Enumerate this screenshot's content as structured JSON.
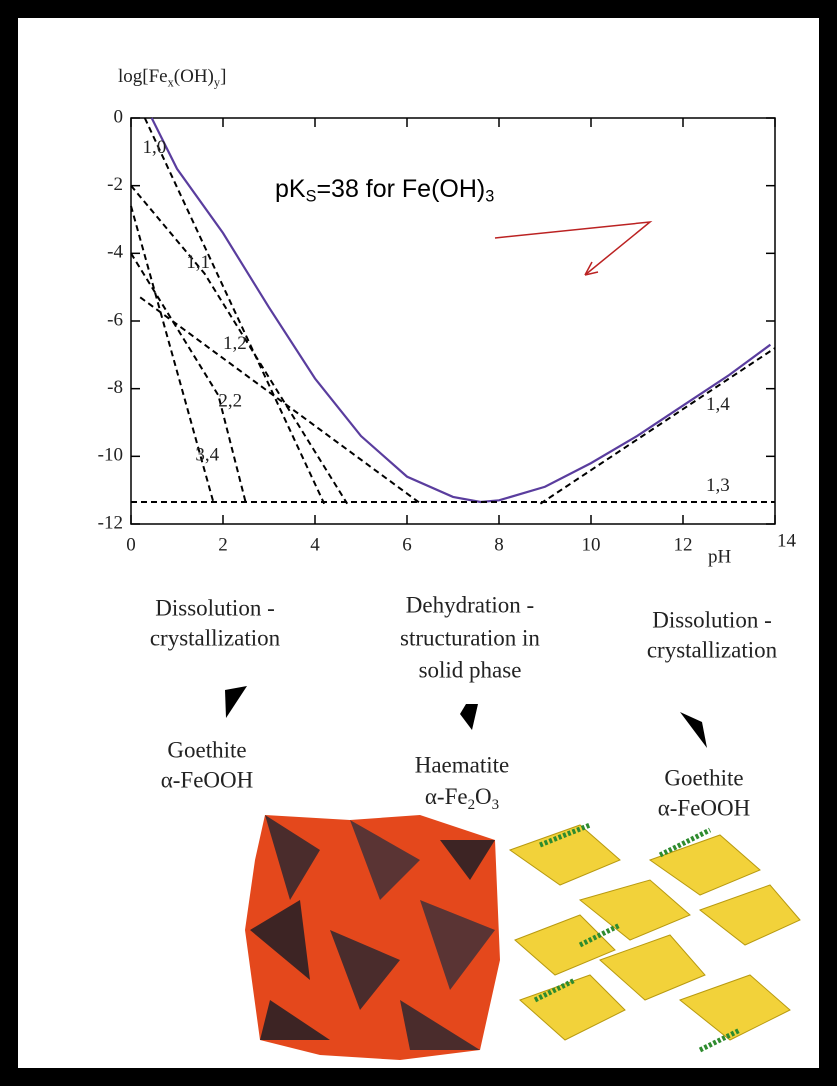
{
  "chart_data": {
    "type": "line",
    "ylabel": [
      "log[Fe",
      "x",
      "(OH)",
      "y",
      "]"
    ],
    "xlabel": "pH",
    "annotation": [
      "pK",
      "S",
      "=38 for Fe(OH)",
      "3"
    ],
    "xlim": [
      0,
      14
    ],
    "xticks": [
      0,
      2,
      4,
      6,
      8,
      10,
      12,
      14
    ],
    "ylim": [
      -12,
      0
    ],
    "yticks": [
      0,
      -2,
      -4,
      -6,
      -8,
      -10,
      -12
    ],
    "series": [
      {
        "color": "#5a3d9e",
        "style": "solid",
        "x": [
          0.45,
          1,
          2,
          3,
          4,
          5,
          6,
          7,
          7.6,
          8,
          9,
          10,
          11,
          12,
          13,
          13.9
        ],
        "values": [
          0,
          -1.5,
          -3.4,
          -5.6,
          -7.7,
          -9.4,
          -10.6,
          -11.2,
          -11.35,
          -11.3,
          -10.9,
          -10.2,
          -9.4,
          -8.5,
          -7.6,
          -6.7
        ]
      },
      {
        "name": "1,0",
        "color": "#000000",
        "style": "dashed",
        "x": [
          0.3,
          4.2
        ],
        "values": [
          0,
          -11.4
        ]
      },
      {
        "name": "1,1",
        "color": "#000000",
        "style": "dashed",
        "x": [
          0,
          1.6,
          4.7
        ],
        "values": [
          -2,
          -4.6,
          -11.4
        ]
      },
      {
        "name": "1,2",
        "color": "#000000",
        "style": "dashed",
        "x": [
          0.2,
          6.3
        ],
        "values": [
          -5.3,
          -11.4
        ]
      },
      {
        "name": "2,2",
        "color": "#000000",
        "style": "dashed",
        "x": [
          0,
          1.9,
          2.5
        ],
        "values": [
          -4,
          -8.2,
          -11.4
        ]
      },
      {
        "name": "3,4",
        "color": "#000000",
        "style": "dashed",
        "x": [
          0,
          1.8
        ],
        "values": [
          -2.6,
          -11.4
        ]
      },
      {
        "name": "1,4",
        "color": "#000000",
        "style": "dashed",
        "x": [
          8.9,
          14
        ],
        "values": [
          -11.4,
          -6.8
        ]
      },
      {
        "name": "1,3",
        "color": "#000000",
        "style": "dashed",
        "x": [
          0,
          14
        ],
        "values": [
          -11.35,
          -11.35
        ]
      }
    ]
  },
  "columns": [
    {
      "process": [
        "Dissolution -",
        "crystallization"
      ],
      "product": [
        "Goethite",
        "α-FeOOH"
      ]
    },
    {
      "process": [
        "Dehydration -",
        "structuration in",
        "solid phase"
      ],
      "product": [
        "Haematite",
        [
          "α-Fe",
          "2",
          "O",
          "3"
        ]
      ]
    },
    {
      "process": [
        "Dissolution -",
        "crystallization"
      ],
      "product": [
        "Goethite",
        "α-FeOOH"
      ]
    }
  ]
}
